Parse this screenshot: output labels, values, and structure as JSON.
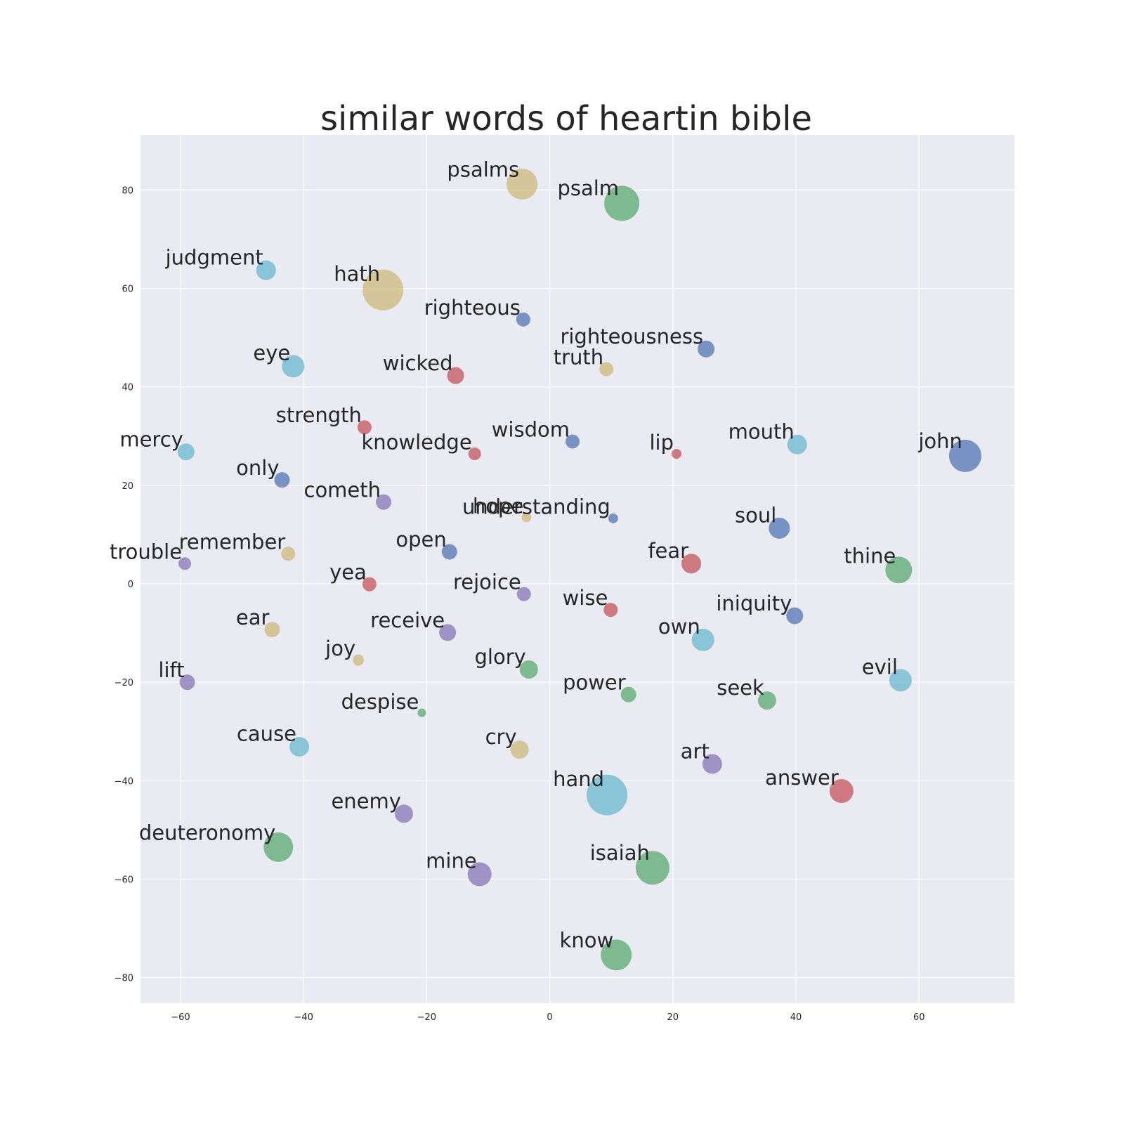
{
  "chart_data": {
    "type": "scatter",
    "title": "similar words of heartin bible",
    "xlabel": "",
    "ylabel": "",
    "xlim": [
      -66.5,
      75.5
    ],
    "ylim": [
      -85.2,
      91.2
    ],
    "xticks": [
      -60,
      -40,
      -20,
      0,
      20,
      40,
      60
    ],
    "yticks": [
      -80,
      -60,
      -40,
      -20,
      0,
      20,
      40,
      60,
      80
    ],
    "xtick_labels": [
      "−60",
      "−40",
      "−20",
      "0",
      "20",
      "40",
      "60"
    ],
    "ytick_labels": [
      "−80",
      "−60",
      "−40",
      "−20",
      "0",
      "20",
      "40",
      "60",
      "80"
    ],
    "grid": true,
    "background": "#eaeaf2",
    "grid_color": "#ffffff",
    "palette": {
      "blue": "#4c72b0",
      "green": "#55a868",
      "red": "#c44e52",
      "purple": "#8172b2",
      "khaki": "#ccb974",
      "cyan": "#64b5cd"
    },
    "points": [
      {
        "word": "psalms",
        "x": -4.5,
        "y": 81.2,
        "size": 22,
        "color": "khaki"
      },
      {
        "word": "psalm",
        "x": 11.7,
        "y": 77.3,
        "size": 25,
        "color": "green"
      },
      {
        "word": "judgment",
        "x": -46.1,
        "y": 63.7,
        "size": 14,
        "color": "cyan"
      },
      {
        "word": "hath",
        "x": -27.1,
        "y": 59.7,
        "size": 29,
        "color": "khaki"
      },
      {
        "word": "righteous",
        "x": -4.3,
        "y": 53.7,
        "size": 10,
        "color": "blue"
      },
      {
        "word": "righteousness",
        "x": 25.4,
        "y": 47.7,
        "size": 12,
        "color": "blue"
      },
      {
        "word": "eye",
        "x": -41.7,
        "y": 44.2,
        "size": 16,
        "color": "cyan"
      },
      {
        "word": "truth",
        "x": 9.2,
        "y": 43.6,
        "size": 10,
        "color": "khaki"
      },
      {
        "word": "wicked",
        "x": -15.3,
        "y": 42.3,
        "size": 12,
        "color": "red"
      },
      {
        "word": "strength",
        "x": -30.1,
        "y": 31.8,
        "size": 10,
        "color": "red"
      },
      {
        "word": "mercy",
        "x": -59.1,
        "y": 26.8,
        "size": 12,
        "color": "cyan"
      },
      {
        "word": "knowledge",
        "x": -12.2,
        "y": 26.4,
        "size": 9,
        "color": "red"
      },
      {
        "word": "wisdom",
        "x": 3.7,
        "y": 28.9,
        "size": 10,
        "color": "blue"
      },
      {
        "word": "lip",
        "x": 20.6,
        "y": 26.4,
        "size": 7,
        "color": "red"
      },
      {
        "word": "mouth",
        "x": 40.2,
        "y": 28.3,
        "size": 14,
        "color": "cyan"
      },
      {
        "word": "john",
        "x": 67.5,
        "y": 26.0,
        "size": 23,
        "color": "blue"
      },
      {
        "word": "only",
        "x": -43.5,
        "y": 21.1,
        "size": 11,
        "color": "blue"
      },
      {
        "word": "cometh",
        "x": -27.0,
        "y": 16.6,
        "size": 11,
        "color": "purple"
      },
      {
        "word": "understanding",
        "x": 10.3,
        "y": 13.3,
        "size": 7,
        "color": "blue"
      },
      {
        "word": "hope",
        "x": -3.8,
        "y": 13.5,
        "size": 7,
        "color": "khaki"
      },
      {
        "word": "soul",
        "x": 37.3,
        "y": 11.3,
        "size": 15,
        "color": "blue"
      },
      {
        "word": "remember",
        "x": -42.5,
        "y": 6.1,
        "size": 10,
        "color": "khaki"
      },
      {
        "word": "open",
        "x": -16.3,
        "y": 6.5,
        "size": 11,
        "color": "blue"
      },
      {
        "word": "trouble",
        "x": -59.3,
        "y": 4.1,
        "size": 9,
        "color": "purple"
      },
      {
        "word": "fear",
        "x": 23.0,
        "y": 4.1,
        "size": 14,
        "color": "red"
      },
      {
        "word": "thine",
        "x": 56.7,
        "y": 2.8,
        "size": 19,
        "color": "green"
      },
      {
        "word": "yea",
        "x": -29.3,
        "y": -0.1,
        "size": 10,
        "color": "red"
      },
      {
        "word": "rejoice",
        "x": -4.2,
        "y": -2.1,
        "size": 10,
        "color": "purple"
      },
      {
        "word": "wise",
        "x": 9.9,
        "y": -5.3,
        "size": 10,
        "color": "red"
      },
      {
        "word": "iniquity",
        "x": 39.8,
        "y": -6.5,
        "size": 12,
        "color": "blue"
      },
      {
        "word": "ear",
        "x": -45.1,
        "y": -9.3,
        "size": 11,
        "color": "khaki"
      },
      {
        "word": "receive",
        "x": -16.6,
        "y": -9.9,
        "size": 12,
        "color": "purple"
      },
      {
        "word": "own",
        "x": 24.9,
        "y": -11.4,
        "size": 16,
        "color": "cyan"
      },
      {
        "word": "joy",
        "x": -31.1,
        "y": -15.5,
        "size": 8,
        "color": "khaki"
      },
      {
        "word": "glory",
        "x": -3.4,
        "y": -17.4,
        "size": 13,
        "color": "green"
      },
      {
        "word": "lift",
        "x": -58.9,
        "y": -20.0,
        "size": 11,
        "color": "purple"
      },
      {
        "word": "evil",
        "x": 57.0,
        "y": -19.6,
        "size": 16,
        "color": "cyan"
      },
      {
        "word": "power",
        "x": 12.8,
        "y": -22.5,
        "size": 11,
        "color": "green"
      },
      {
        "word": "seek",
        "x": 35.3,
        "y": -23.7,
        "size": 13,
        "color": "green"
      },
      {
        "word": "despise",
        "x": -20.8,
        "y": -26.2,
        "size": 6,
        "color": "green"
      },
      {
        "word": "cause",
        "x": -40.7,
        "y": -33.1,
        "size": 14,
        "color": "cyan"
      },
      {
        "word": "cry",
        "x": -4.9,
        "y": -33.7,
        "size": 13,
        "color": "khaki"
      },
      {
        "word": "art",
        "x": 26.4,
        "y": -36.6,
        "size": 14,
        "color": "purple"
      },
      {
        "word": "hand",
        "x": 9.3,
        "y": -42.9,
        "size": 29,
        "color": "cyan"
      },
      {
        "word": "answer",
        "x": 47.4,
        "y": -42.1,
        "size": 17,
        "color": "red"
      },
      {
        "word": "enemy",
        "x": -23.7,
        "y": -46.7,
        "size": 13,
        "color": "purple"
      },
      {
        "word": "deuteronomy",
        "x": -44.1,
        "y": -53.5,
        "size": 21,
        "color": "green"
      },
      {
        "word": "mine",
        "x": -11.4,
        "y": -59.0,
        "size": 17,
        "color": "purple"
      },
      {
        "word": "isaiah",
        "x": 16.7,
        "y": -57.7,
        "size": 24,
        "color": "green"
      },
      {
        "word": "know",
        "x": 10.8,
        "y": -75.4,
        "size": 22,
        "color": "green"
      }
    ]
  }
}
